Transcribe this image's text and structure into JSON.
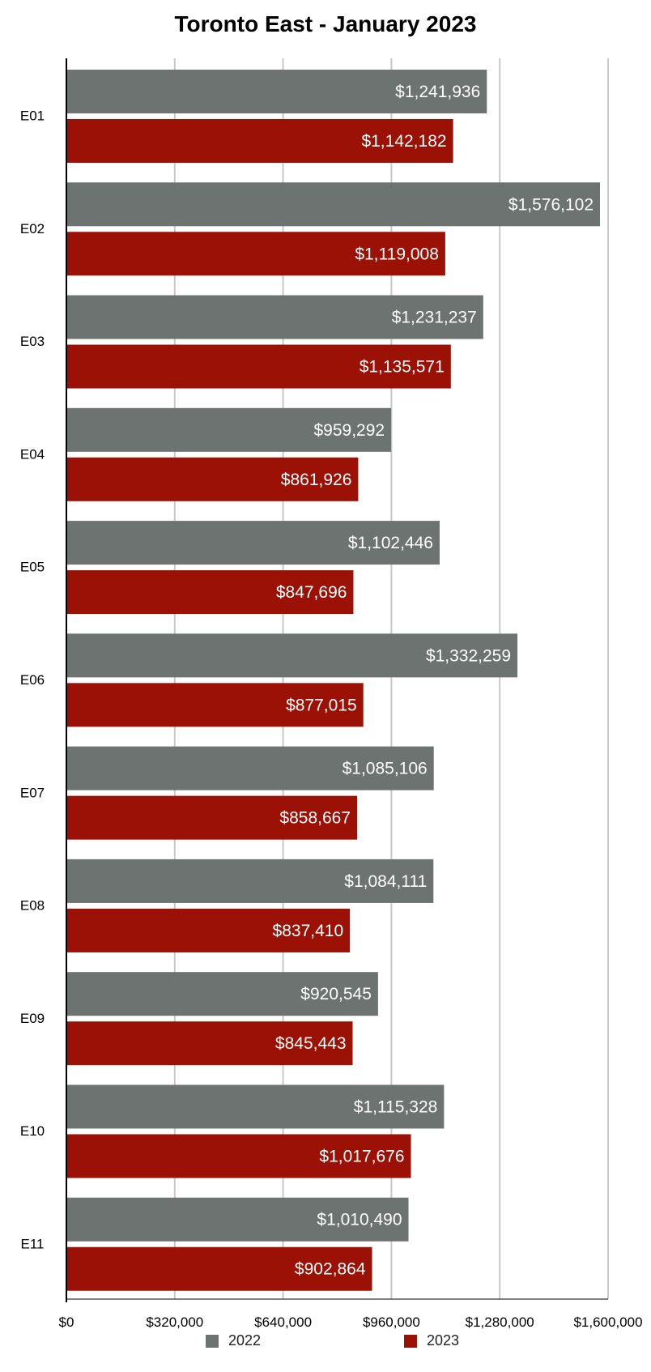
{
  "chart_data": {
    "type": "bar",
    "orientation": "horizontal",
    "title": "Toronto East - January 2023",
    "categories": [
      "E01",
      "E02",
      "E03",
      "E04",
      "E05",
      "E06",
      "E07",
      "E08",
      "E09",
      "E10",
      "E11"
    ],
    "series": [
      {
        "name": "2022",
        "color": "#6c7370",
        "values": [
          1241936,
          1576102,
          1231237,
          959292,
          1102446,
          1332259,
          1085106,
          1084111,
          920545,
          1115328,
          1010490
        ]
      },
      {
        "name": "2023",
        "color": "#9b1105",
        "values": [
          1142182,
          1119008,
          1135571,
          861926,
          847696,
          877015,
          858667,
          837410,
          845443,
          1017676,
          902864
        ]
      }
    ],
    "value_labels": [
      [
        "$1,241,936",
        "$1,576,102",
        "$1,231,237",
        "$959,292",
        "$1,102,446",
        "$1,332,259",
        "$1,085,106",
        "$1,084,111",
        "$920,545",
        "$1,115,328",
        "$1,010,490"
      ],
      [
        "$1,142,182",
        "$1,119,008",
        "$1,135,571",
        "$861,926",
        "$847,696",
        "$877,015",
        "$858,667",
        "$837,410",
        "$845,443",
        "$1,017,676",
        "$902,864"
      ]
    ],
    "xlim": [
      0,
      1600000
    ],
    "ticks": [
      0,
      320000,
      640000,
      960000,
      1280000,
      1600000
    ],
    "tick_labels": [
      "$0",
      "$320,000",
      "$640,000",
      "$960,000",
      "$1,280,000",
      "$1,600,000"
    ],
    "grid": true,
    "legend": "bottom"
  }
}
